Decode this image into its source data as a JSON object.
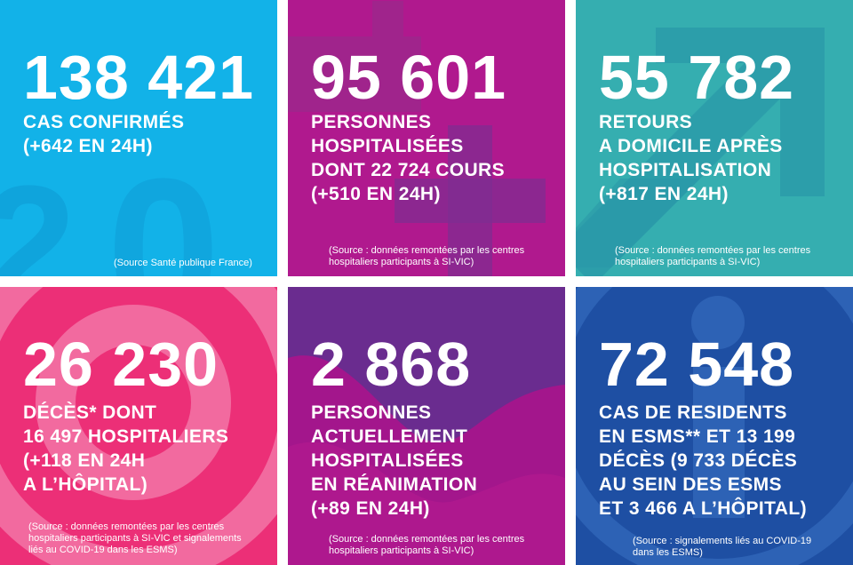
{
  "tiles": [
    {
      "number": "138 421",
      "lines": [
        "CAS CONFIRMÉS",
        "(+642 EN 24H)"
      ],
      "source": [
        "(Source Santé publique France)"
      ],
      "color": "#12b2e8"
    },
    {
      "number": "95 601",
      "lines": [
        "PERSONNES",
        "HOSPITALISÉES",
        "DONT 22 724 COURS",
        "(+510 EN 24H)"
      ],
      "source": [
        "(Source : données remontées par les centres",
        "hospitaliers participants à SI-VIC)"
      ],
      "color": "#b0198e"
    },
    {
      "number": "55 782",
      "lines": [
        "RETOURS",
        "A DOMICILE APRÈS",
        "HOSPITALISATION",
        "(+817 EN 24H)"
      ],
      "source": [
        "(Source : données remontées par les centres",
        "hospitaliers participants à SI-VIC)"
      ],
      "color": "#35aeb0"
    },
    {
      "number": "26 230",
      "lines": [
        "DÉCÈS* DONT",
        "16 497 HOSPITALIERS",
        "(+118 EN 24H",
        "A L’HÔPITAL)"
      ],
      "source": [
        "(Source : données remontées par les centres",
        "hospitaliers participants à SI-VIC et signalements",
        "liés au COVID-19 dans les ESMS)"
      ],
      "color": "#ec2f77"
    },
    {
      "number": "2 868",
      "lines": [
        "PERSONNES",
        "ACTUELLEMENT",
        "HOSPITALISÉES",
        "EN RÉANIMATION",
        "(+89 EN 24H)"
      ],
      "source": [
        "(Source : données remontées par les centres",
        "hospitaliers participants à SI-VIC)"
      ],
      "color": "#6a2c8f"
    },
    {
      "number": "72 548",
      "lines": [
        "CAS DE RESIDENTS",
        "EN ESMS** ET 13 199",
        "DÉCÈS (9 733 DÉCÈS",
        "AU SEIN DES ESMS",
        "ET 3 466 A L’HÔPITAL)"
      ],
      "source": [
        "(Source : signalements liés au COVID-19",
        "dans les ESMS)"
      ],
      "color": "#1e4fa3"
    }
  ]
}
